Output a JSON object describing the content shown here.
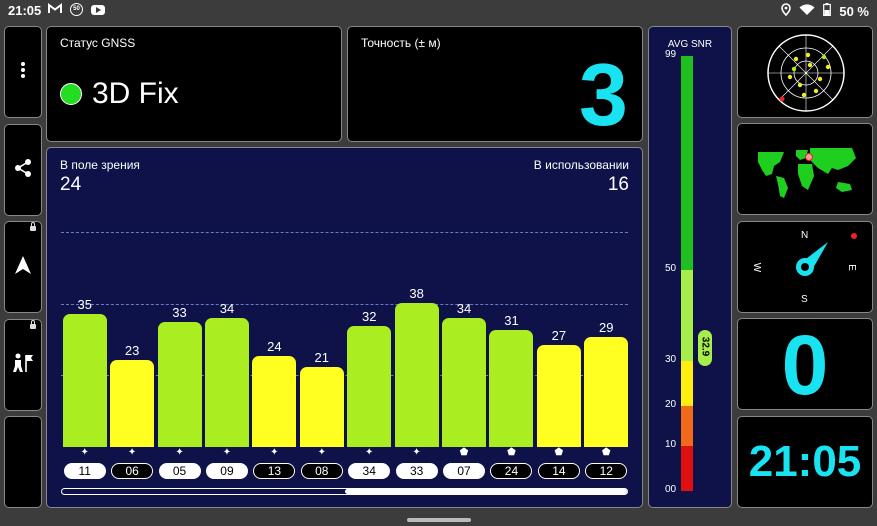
{
  "status_bar": {
    "time": "21:05",
    "left_icons": [
      "gmail-icon",
      "badge-50-icon",
      "youtube-icon"
    ],
    "badge_text": "50",
    "right_icons": [
      "location-icon",
      "wifi-icon",
      "battery-icon"
    ],
    "battery": "50 %"
  },
  "sidebar": {
    "items": [
      {
        "name": "menu",
        "icon": "more-vert-icon",
        "locked": false
      },
      {
        "name": "share",
        "icon": "share-icon",
        "locked": false
      },
      {
        "name": "navigate",
        "icon": "navigation-arrow-icon",
        "locked": true
      },
      {
        "name": "hiker",
        "icon": "hiker-flag-icon",
        "locked": true
      },
      {
        "name": "night",
        "icon": "moon-icon",
        "locked": false
      }
    ]
  },
  "gnss_status": {
    "label": "Статус GNSS",
    "value": "3D Fix",
    "indicator_color": "#22dd22"
  },
  "accuracy": {
    "label": "Точность (± м)",
    "value": "3"
  },
  "satellites": {
    "in_view_label": "В поле зрения",
    "in_view": "24",
    "in_use_label": "В использовании",
    "in_use": "16",
    "max_snr": 50,
    "bars": [
      {
        "snr": 35,
        "prn": "11",
        "used": true,
        "symbol": "✦",
        "color": "#aaee22"
      },
      {
        "snr": 23,
        "prn": "06",
        "used": false,
        "symbol": "✦",
        "color": "#ffff22"
      },
      {
        "snr": 33,
        "prn": "05",
        "used": true,
        "symbol": "✦",
        "color": "#aaee22"
      },
      {
        "snr": 34,
        "prn": "09",
        "used": true,
        "symbol": "✦",
        "color": "#aaee22"
      },
      {
        "snr": 24,
        "prn": "13",
        "used": false,
        "symbol": "✦",
        "color": "#ffff22"
      },
      {
        "snr": 21,
        "prn": "08",
        "used": false,
        "symbol": "✦",
        "color": "#ffff22"
      },
      {
        "snr": 32,
        "prn": "34",
        "used": true,
        "symbol": "✦",
        "color": "#aaee22"
      },
      {
        "snr": 38,
        "prn": "33",
        "used": true,
        "symbol": "✦",
        "color": "#aaee22"
      },
      {
        "snr": 34,
        "prn": "07",
        "used": true,
        "symbol": "⬟",
        "color": "#aaee22"
      },
      {
        "snr": 31,
        "prn": "24",
        "used": false,
        "symbol": "⬟",
        "color": "#aaee22"
      },
      {
        "snr": 27,
        "prn": "14",
        "used": false,
        "symbol": "⬟",
        "color": "#ffff22"
      },
      {
        "snr": 29,
        "prn": "12",
        "used": false,
        "symbol": "⬟",
        "color": "#ffff22"
      }
    ],
    "scroll_position": 0.5
  },
  "avg_snr": {
    "title": "AVG SNR",
    "ticks": [
      {
        "label": "99",
        "value": 99
      },
      {
        "label": "50",
        "value": 50
      },
      {
        "label": "30",
        "value": 30
      },
      {
        "label": "20",
        "value": 20
      },
      {
        "label": "10",
        "value": 10
      },
      {
        "label": "00",
        "value": 0
      }
    ],
    "segments": [
      {
        "from": 0,
        "to": 10,
        "color": "#e01010"
      },
      {
        "from": 10,
        "to": 20,
        "color": "#f06a1a"
      },
      {
        "from": 20,
        "to": 30,
        "color": "#ffee10"
      },
      {
        "from": 30,
        "to": 50,
        "color": "#a8ee4a"
      },
      {
        "from": 50,
        "to": 99,
        "color": "#1fbf1f"
      }
    ],
    "value": "32.9",
    "numeric_value": 32.9
  },
  "tiles": {
    "sky_plot": {
      "icon": "sky-plot-icon"
    },
    "world_map": {
      "icon": "world-map-icon"
    },
    "compass": {
      "n": "N",
      "s": "S",
      "e": "E",
      "w": "W"
    },
    "speed": {
      "value": "0"
    },
    "clock": {
      "value": "21:05"
    }
  }
}
